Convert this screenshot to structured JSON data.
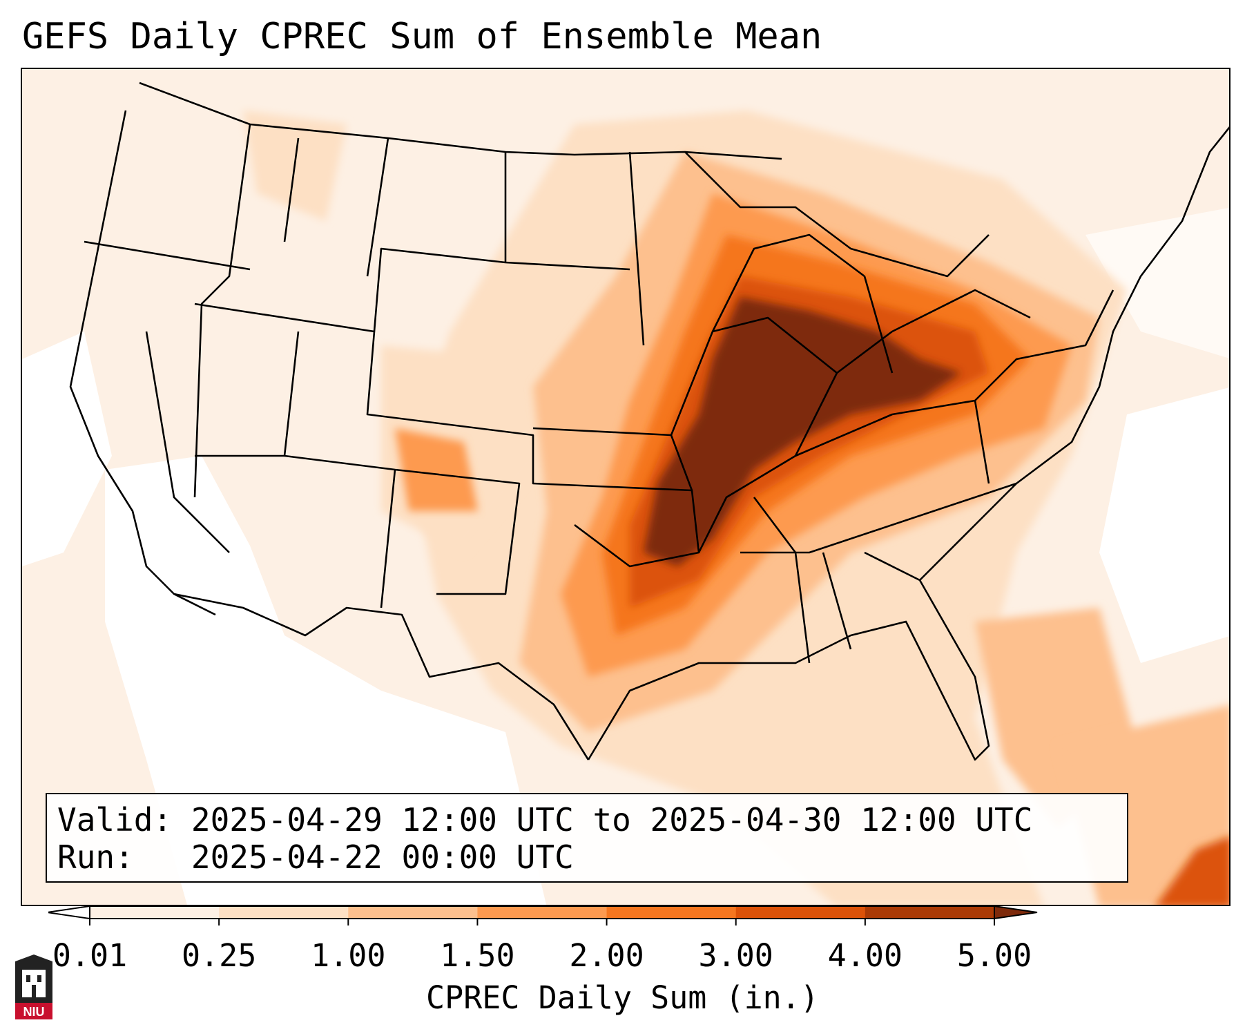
{
  "title": "GEFS Daily CPREC Sum of Ensemble Mean",
  "info": {
    "valid_label": "Valid:",
    "valid_value": "2025-04-29 12:00 UTC to 2025-04-30 12:00 UTC",
    "run_label": "Run:",
    "run_value": "2025-04-22 00:00 UTC"
  },
  "colorbar": {
    "label": "CPREC Daily Sum (in.)",
    "ticks": [
      "0.01",
      "0.25",
      "1.00",
      "1.50",
      "2.00",
      "3.00",
      "4.00",
      "5.00"
    ],
    "colors": [
      "#fdf0e4",
      "#fde0c4",
      "#fdc08e",
      "#fd9a50",
      "#f5761f",
      "#dc5208",
      "#aa3a05",
      "#7e2a0b"
    ],
    "under_color": "#ffffff",
    "over_color": "#7e2a0b"
  },
  "logo": {
    "text": "NIU",
    "color": "#c8102e"
  },
  "legend_colors": {
    "border": "#000000"
  }
}
